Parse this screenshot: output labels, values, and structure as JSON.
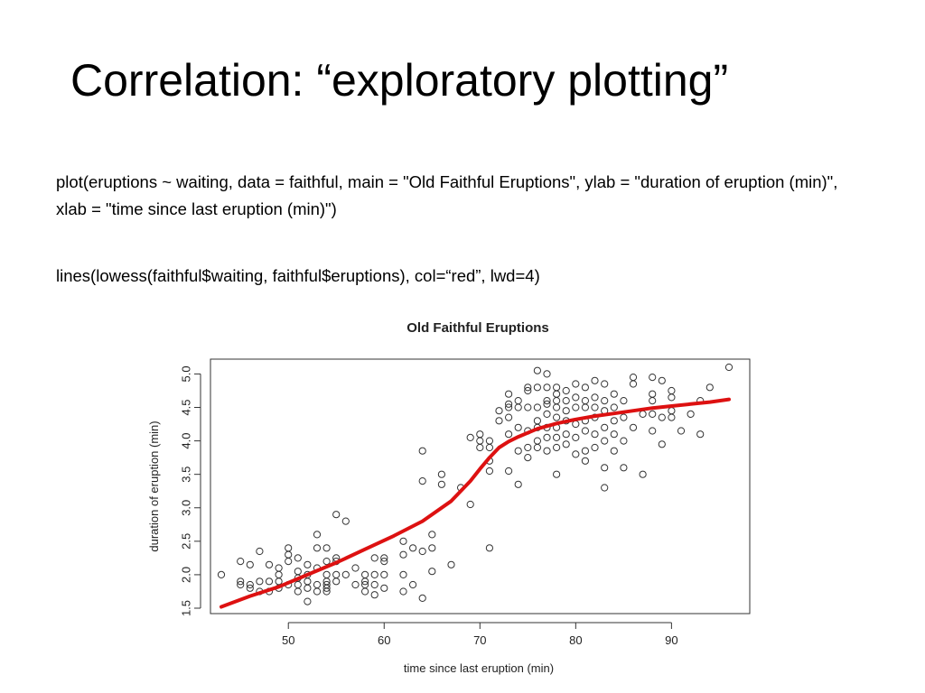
{
  "slide": {
    "title": "Correlation: “exploratory plotting”",
    "code_lines": [
      "plot(eruptions ~ waiting, data = faithful, main = \"Old Faithful Eruptions\", ylab = \"duration of eruption (min)\", xlab = \"time since last eruption (min)\")",
      "lines(lowess(faithful$waiting, faithful$eruptions), col=“red”, lwd=4)"
    ]
  },
  "chart_data": {
    "type": "scatter",
    "title": "Old Faithful Eruptions",
    "xlabel": "time since last eruption (min)",
    "ylabel": "duration of eruption (min)",
    "xlim": [
      43,
      96
    ],
    "ylim": [
      1.5,
      5.1
    ],
    "xticks": [
      "50",
      "60",
      "70",
      "80",
      "90"
    ],
    "yticks": [
      "1.5",
      "2.0",
      "2.5",
      "3.0",
      "3.5",
      "4.0",
      "4.5",
      "5.0"
    ],
    "grid": false,
    "points": [
      [
        43,
        2.0
      ],
      [
        45,
        1.9
      ],
      [
        45,
        1.85
      ],
      [
        45,
        2.2
      ],
      [
        46,
        1.8
      ],
      [
        46,
        1.85
      ],
      [
        46,
        2.15
      ],
      [
        47,
        1.75
      ],
      [
        47,
        1.9
      ],
      [
        47,
        2.35
      ],
      [
        48,
        1.75
      ],
      [
        48,
        1.9
      ],
      [
        48,
        2.15
      ],
      [
        49,
        1.8
      ],
      [
        49,
        1.9
      ],
      [
        49,
        2.0
      ],
      [
        49,
        2.1
      ],
      [
        50,
        1.85
      ],
      [
        50,
        2.2
      ],
      [
        50,
        2.3
      ],
      [
        50,
        2.4
      ],
      [
        51,
        1.75
      ],
      [
        51,
        1.85
      ],
      [
        51,
        1.95
      ],
      [
        51,
        2.05
      ],
      [
        51,
        2.25
      ],
      [
        52,
        1.6
      ],
      [
        52,
        1.8
      ],
      [
        52,
        1.9
      ],
      [
        52,
        2.0
      ],
      [
        52,
        2.15
      ],
      [
        53,
        1.75
      ],
      [
        53,
        1.85
      ],
      [
        53,
        2.1
      ],
      [
        53,
        2.4
      ],
      [
        53,
        2.6
      ],
      [
        54,
        1.75
      ],
      [
        54,
        1.8
      ],
      [
        54,
        1.85
      ],
      [
        54,
        1.9
      ],
      [
        54,
        2.0
      ],
      [
        54,
        2.2
      ],
      [
        54,
        2.4
      ],
      [
        55,
        1.9
      ],
      [
        55,
        2.0
      ],
      [
        55,
        2.2
      ],
      [
        55,
        2.25
      ],
      [
        55,
        2.9
      ],
      [
        56,
        2.0
      ],
      [
        56,
        2.8
      ],
      [
        57,
        1.85
      ],
      [
        57,
        2.1
      ],
      [
        58,
        1.75
      ],
      [
        58,
        1.85
      ],
      [
        58,
        1.9
      ],
      [
        58,
        2.0
      ],
      [
        59,
        1.7
      ],
      [
        59,
        1.85
      ],
      [
        59,
        2.0
      ],
      [
        59,
        2.25
      ],
      [
        60,
        1.8
      ],
      [
        60,
        2.0
      ],
      [
        60,
        2.2
      ],
      [
        60,
        2.25
      ],
      [
        62,
        1.75
      ],
      [
        62,
        2.0
      ],
      [
        62,
        2.3
      ],
      [
        62,
        2.5
      ],
      [
        63,
        1.85
      ],
      [
        63,
        2.4
      ],
      [
        64,
        1.65
      ],
      [
        64,
        2.35
      ],
      [
        64,
        3.4
      ],
      [
        64,
        3.85
      ],
      [
        65,
        2.05
      ],
      [
        65,
        2.4
      ],
      [
        65,
        2.6
      ],
      [
        66,
        3.35
      ],
      [
        66,
        3.5
      ],
      [
        67,
        2.15
      ],
      [
        68,
        3.3
      ],
      [
        69,
        3.05
      ],
      [
        69,
        4.05
      ],
      [
        70,
        3.9
      ],
      [
        70,
        4.0
      ],
      [
        70,
        4.1
      ],
      [
        71,
        2.4
      ],
      [
        71,
        3.55
      ],
      [
        71,
        3.7
      ],
      [
        71,
        3.9
      ],
      [
        71,
        4.0
      ],
      [
        72,
        4.3
      ],
      [
        72,
        4.45
      ],
      [
        73,
        3.55
      ],
      [
        73,
        4.1
      ],
      [
        73,
        4.35
      ],
      [
        73,
        4.5
      ],
      [
        73,
        4.55
      ],
      [
        73,
        4.7
      ],
      [
        74,
        3.35
      ],
      [
        74,
        3.85
      ],
      [
        74,
        4.2
      ],
      [
        74,
        4.5
      ],
      [
        74,
        4.6
      ],
      [
        75,
        3.75
      ],
      [
        75,
        3.9
      ],
      [
        75,
        4.15
      ],
      [
        75,
        4.5
      ],
      [
        75,
        4.75
      ],
      [
        75,
        4.8
      ],
      [
        76,
        3.9
      ],
      [
        76,
        4.0
      ],
      [
        76,
        4.2
      ],
      [
        76,
        4.3
      ],
      [
        76,
        4.5
      ],
      [
        76,
        4.8
      ],
      [
        76,
        5.05
      ],
      [
        77,
        3.85
      ],
      [
        77,
        4.05
      ],
      [
        77,
        4.2
      ],
      [
        77,
        4.4
      ],
      [
        77,
        4.55
      ],
      [
        77,
        4.6
      ],
      [
        77,
        4.8
      ],
      [
        77,
        5.0
      ],
      [
        78,
        3.5
      ],
      [
        78,
        3.9
      ],
      [
        78,
        4.05
      ],
      [
        78,
        4.2
      ],
      [
        78,
        4.35
      ],
      [
        78,
        4.5
      ],
      [
        78,
        4.6
      ],
      [
        78,
        4.7
      ],
      [
        78,
        4.8
      ],
      [
        79,
        3.95
      ],
      [
        79,
        4.1
      ],
      [
        79,
        4.3
      ],
      [
        79,
        4.45
      ],
      [
        79,
        4.6
      ],
      [
        79,
        4.75
      ],
      [
        80,
        3.8
      ],
      [
        80,
        4.05
      ],
      [
        80,
        4.25
      ],
      [
        80,
        4.5
      ],
      [
        80,
        4.65
      ],
      [
        80,
        4.85
      ],
      [
        81,
        3.7
      ],
      [
        81,
        3.85
      ],
      [
        81,
        4.15
      ],
      [
        81,
        4.3
      ],
      [
        81,
        4.5
      ],
      [
        81,
        4.6
      ],
      [
        81,
        4.8
      ],
      [
        82,
        3.9
      ],
      [
        82,
        4.1
      ],
      [
        82,
        4.35
      ],
      [
        82,
        4.5
      ],
      [
        82,
        4.65
      ],
      [
        82,
        4.9
      ],
      [
        83,
        3.3
      ],
      [
        83,
        3.6
      ],
      [
        83,
        4.0
      ],
      [
        83,
        4.2
      ],
      [
        83,
        4.45
      ],
      [
        83,
        4.6
      ],
      [
        83,
        4.85
      ],
      [
        84,
        3.85
      ],
      [
        84,
        4.1
      ],
      [
        84,
        4.3
      ],
      [
        84,
        4.5
      ],
      [
        84,
        4.7
      ],
      [
        85,
        3.6
      ],
      [
        85,
        4.0
      ],
      [
        85,
        4.35
      ],
      [
        85,
        4.6
      ],
      [
        86,
        4.2
      ],
      [
        86,
        4.85
      ],
      [
        86,
        4.95
      ],
      [
        87,
        3.5
      ],
      [
        87,
        4.4
      ],
      [
        88,
        4.15
      ],
      [
        88,
        4.4
      ],
      [
        88,
        4.6
      ],
      [
        88,
        4.7
      ],
      [
        88,
        4.95
      ],
      [
        89,
        3.95
      ],
      [
        89,
        4.35
      ],
      [
        89,
        4.9
      ],
      [
        90,
        4.35
      ],
      [
        90,
        4.45
      ],
      [
        90,
        4.65
      ],
      [
        90,
        4.75
      ],
      [
        91,
        4.15
      ],
      [
        92,
        4.4
      ],
      [
        93,
        4.1
      ],
      [
        93,
        4.6
      ],
      [
        94,
        4.8
      ],
      [
        96,
        5.1
      ]
    ],
    "lowess": [
      [
        43,
        1.52
      ],
      [
        46,
        1.68
      ],
      [
        49,
        1.82
      ],
      [
        52,
        2.0
      ],
      [
        55,
        2.18
      ],
      [
        58,
        2.38
      ],
      [
        61,
        2.58
      ],
      [
        64,
        2.8
      ],
      [
        67,
        3.1
      ],
      [
        69,
        3.4
      ],
      [
        70,
        3.58
      ],
      [
        71,
        3.75
      ],
      [
        72,
        3.9
      ],
      [
        73,
        3.99
      ],
      [
        74,
        4.06
      ],
      [
        76,
        4.18
      ],
      [
        78,
        4.26
      ],
      [
        80,
        4.32
      ],
      [
        82,
        4.37
      ],
      [
        84,
        4.41
      ],
      [
        86,
        4.45
      ],
      [
        88,
        4.49
      ],
      [
        90,
        4.52
      ],
      [
        92,
        4.55
      ],
      [
        94,
        4.58
      ],
      [
        96,
        4.62
      ]
    ],
    "colors": {
      "points": "#333333",
      "lowess": "#dd1111",
      "axes": "#333333"
    }
  }
}
